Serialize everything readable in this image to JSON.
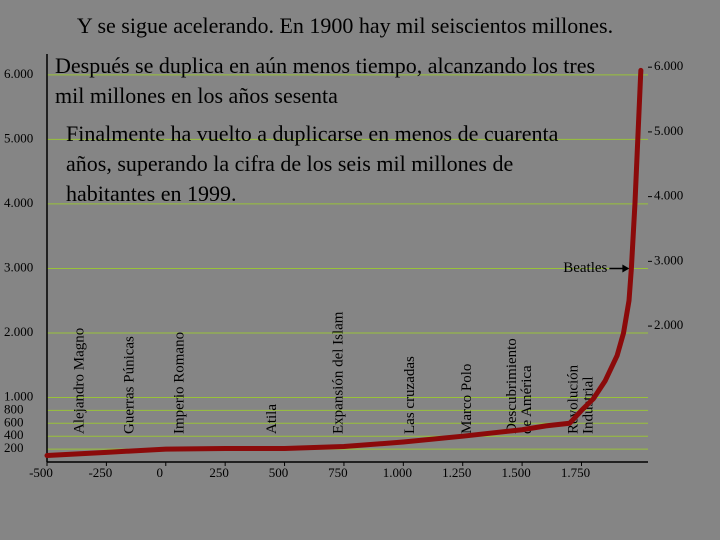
{
  "chart_data": {
    "type": "line",
    "title": "Y se sigue acelerando. En 1900 hay mil seiscientos millones.",
    "notes": [
      [
        "Después se duplica en aún menos tiempo, alcanzando los tres",
        "mil millones en los años sesenta"
      ],
      [
        "Finalmente ha vuelto a duplicarse en menos de cuarenta",
        "años, superando la cifra de los seis mil millones de",
        "habitantes en 1999."
      ]
    ],
    "x": [
      -500,
      -250,
      0,
      250,
      500,
      750,
      1000,
      1250,
      1500,
      1600,
      1700,
      1750,
      1800,
      1850,
      1900,
      1927,
      1950,
      1960,
      1975,
      1987,
      1999,
      2000
    ],
    "series": [
      {
        "color": "#8b0a0a",
        "values": [
          100,
          150,
          200,
          210,
          210,
          240,
          310,
          400,
          500,
          560,
          600,
          800,
          980,
          1260,
          1650,
          2000,
          2500,
          3000,
          4000,
          5000,
          6000,
          6070
        ]
      }
    ],
    "events": [
      {
        "x": -360,
        "lines": [
          "Alejandro Magno"
        ]
      },
      {
        "x": -150,
        "lines": [
          "Guerras Púnicas"
        ]
      },
      {
        "x": 60,
        "lines": [
          "Imperio Romano"
        ]
      },
      {
        "x": 450,
        "lines": [
          "Atila"
        ]
      },
      {
        "x": 730,
        "lines": [
          "Expansión del Islam"
        ]
      },
      {
        "x": 1030,
        "lines": [
          "Las cruzadas"
        ]
      },
      {
        "x": 1270,
        "lines": [
          "Marco Polo"
        ]
      },
      {
        "x": 1492,
        "lines": [
          "Descubrimiento",
          "de América"
        ]
      },
      {
        "x": 1750,
        "lines": [
          "Revolución",
          "Industrial"
        ]
      }
    ],
    "annotation": {
      "text": "Beatles",
      "x": 1960,
      "y": 3000
    },
    "xlim": [
      -500,
      2030
    ],
    "xticks": [
      -500,
      -250,
      0,
      250,
      500,
      750,
      {
        "value": 1000,
        "label": "1.000"
      },
      {
        "value": 1250,
        "label": "1.250"
      },
      {
        "value": 1500,
        "label": "1.500"
      },
      {
        "value": 1750,
        "label": "1.750"
      }
    ],
    "ylim": [
      0,
      6200
    ],
    "yticks": [
      200,
      400,
      600,
      800,
      {
        "value": 1000,
        "label": "1.000"
      },
      {
        "value": 2000,
        "label": "2.000"
      },
      {
        "value": 3000,
        "label": "3.000"
      },
      {
        "value": 4000,
        "label": "4.000"
      },
      {
        "value": 5000,
        "label": "5.000"
      },
      {
        "value": 6000,
        "label": "6.000"
      }
    ],
    "y2lim": [
      -100,
      6080
    ],
    "y2ticks": [
      {
        "value": 2000,
        "label": "2.000"
      },
      {
        "value": 3000,
        "label": "3.000"
      },
      {
        "value": 4000,
        "label": "4.000"
      },
      {
        "value": 5000,
        "label": "5.000"
      },
      {
        "value": 6000,
        "label": "6.000"
      }
    ],
    "grid": true,
    "grid_color": "#99c23a",
    "background": "#858585"
  }
}
